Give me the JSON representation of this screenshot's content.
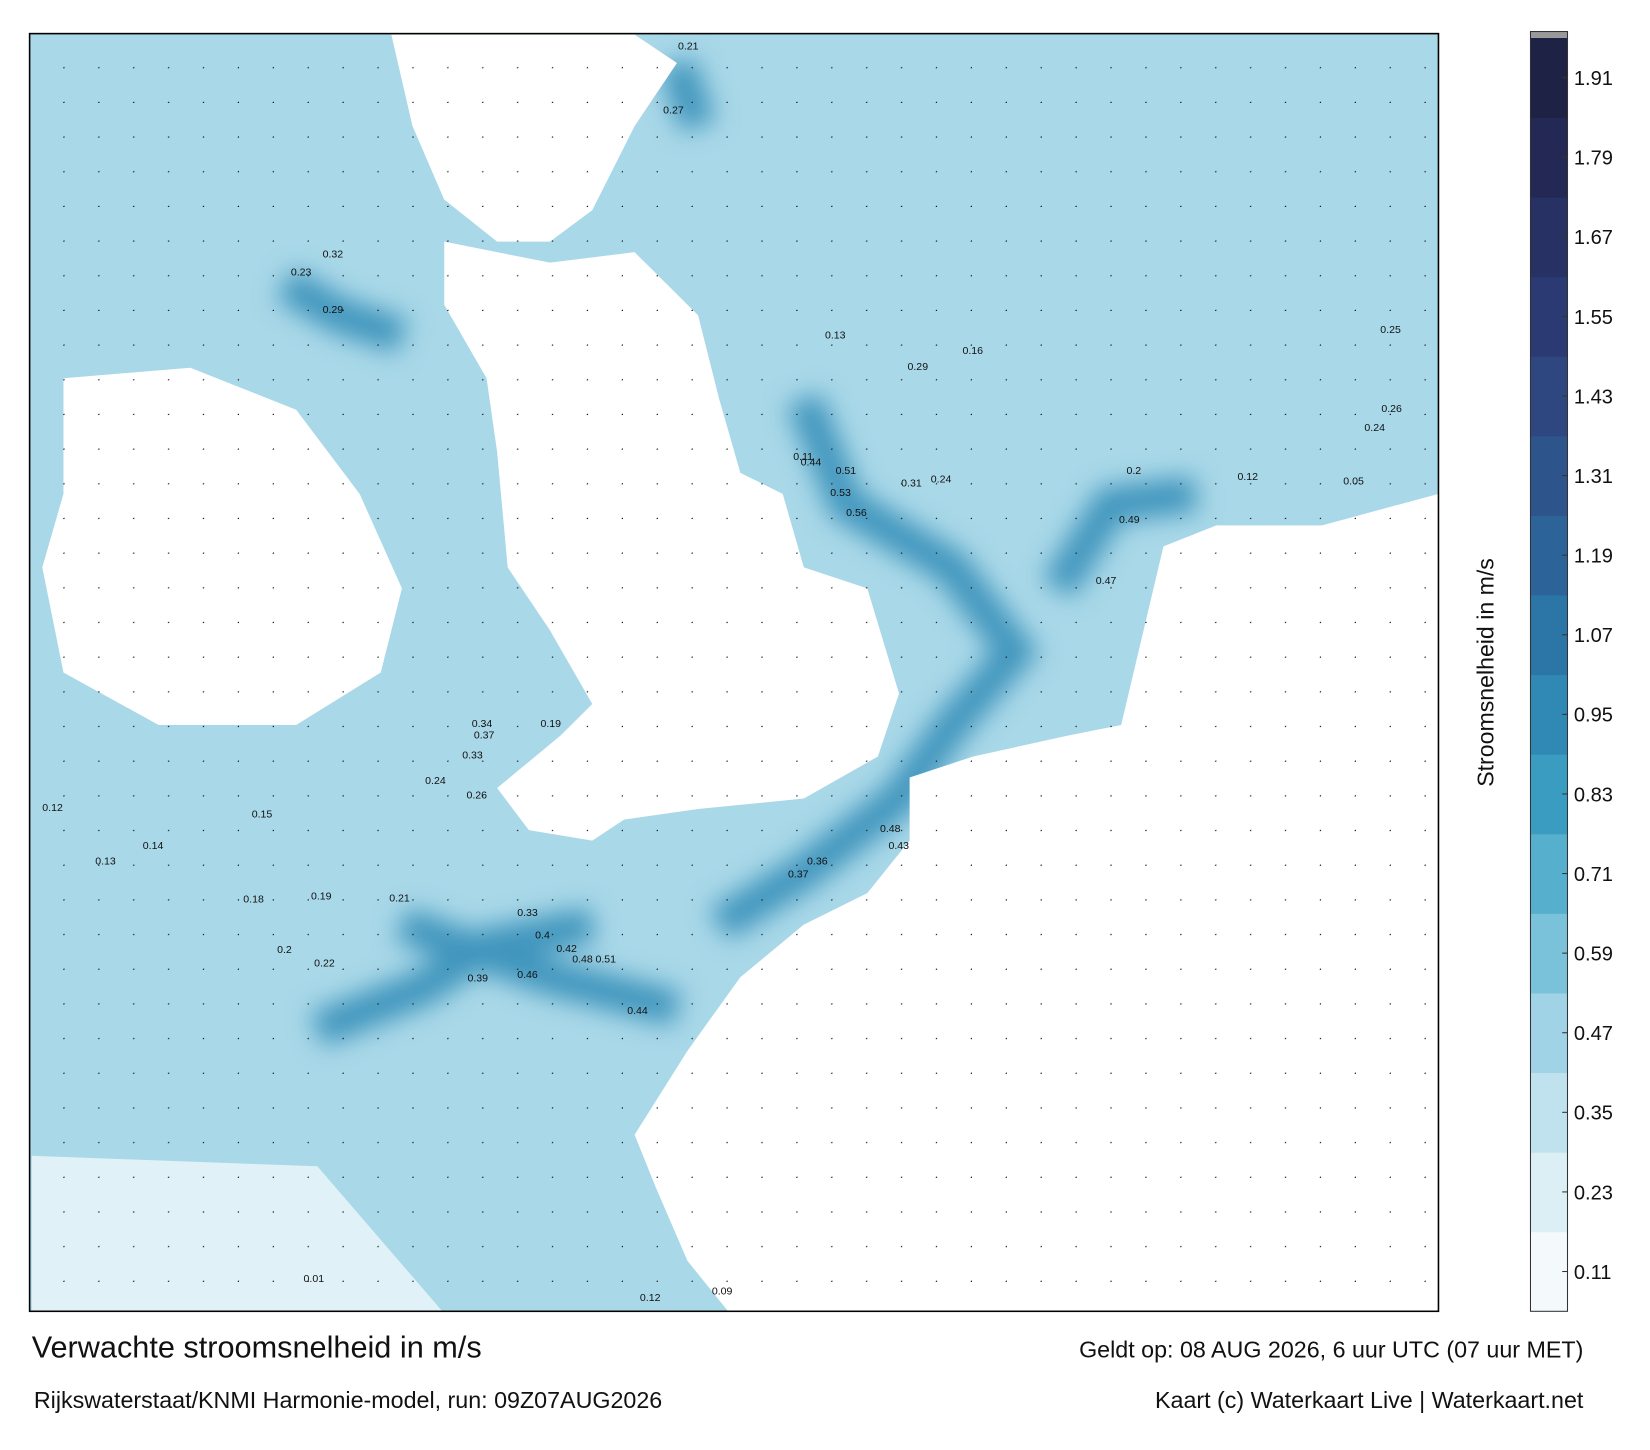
{
  "title": "Verwachte stroomsnelheid in m/s",
  "subtitle": "Rijkswaterstaat/KNMI Harmonie-model, run: 09Z07AUG2026",
  "valid_time": "Geldt op: 08 AUG 2026, 6 uur UTC (07 uur MET)",
  "credit": "Kaart (c) Waterkaart Live | Waterkaart.net",
  "colorbar": {
    "label": "Stroomsnelheid in m/s",
    "lim": [
      0.05,
      1.97
    ],
    "ticks": [
      0.11,
      0.23,
      0.35,
      0.47,
      0.59,
      0.71,
      0.83,
      0.95,
      1.07,
      1.19,
      1.31,
      1.43,
      1.55,
      1.67,
      1.79,
      1.91
    ],
    "colors": [
      "#f4fafc",
      "#dcefF5",
      "#bfe2ee",
      "#9fd3e5",
      "#7ac2da",
      "#55afcd",
      "#3b9cc1",
      "#2f89b4",
      "#2b76a6",
      "#2c6499",
      "#2e548c",
      "#2f4780",
      "#2b3a72",
      "#273163",
      "#232954",
      "#1e2346"
    ]
  },
  "map": {
    "labels": [
      "0.53",
      "0.56",
      "0.49",
      "0.44",
      "0.51",
      "0.47",
      "0.51",
      "0.48",
      "0.46",
      "0.4",
      "0.33",
      "0.39",
      "0.44",
      "0.42",
      "0.37",
      "0.36",
      "0.48",
      "0.43",
      "0.29",
      "0.31",
      "0.24",
      "0.26",
      "0.24",
      "0.25",
      "0.23",
      "0.32",
      "0.29",
      "0.21",
      "0.27",
      "0.13",
      "0.16",
      "0.12",
      "0.2",
      "0.11",
      "0.05",
      "0.37",
      "0.34",
      "0.19",
      "0.33",
      "0.26",
      "0.24",
      "0.21",
      "0.2",
      "0.22",
      "0.18",
      "0.19",
      "0.15",
      "0.14",
      "0.13",
      "0.12",
      "0.01",
      "0.09",
      "0.12"
    ]
  }
}
